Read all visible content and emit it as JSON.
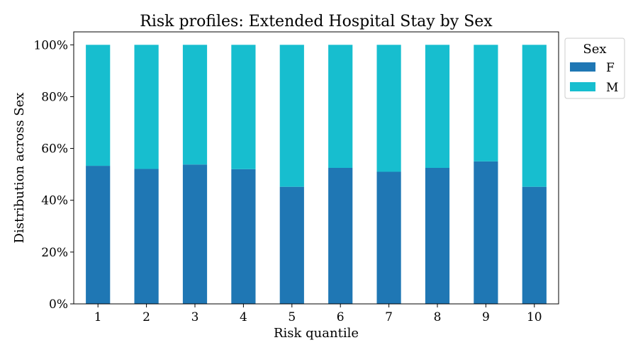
{
  "chart_data": {
    "type": "bar",
    "stacked": true,
    "title": "Risk profiles: Extended Hospital Stay by Sex",
    "xlabel": "Risk quantile",
    "ylabel": "Distribution across Sex",
    "categories": [
      "1",
      "2",
      "3",
      "4",
      "5",
      "6",
      "7",
      "8",
      "9",
      "10"
    ],
    "series": [
      {
        "name": "F",
        "color": "#1f77b4",
        "values": [
          0.533,
          0.521,
          0.538,
          0.52,
          0.452,
          0.525,
          0.51,
          0.525,
          0.55,
          0.452
        ]
      },
      {
        "name": "M",
        "color": "#17becf",
        "values": [
          0.467,
          0.479,
          0.462,
          0.48,
          0.548,
          0.475,
          0.49,
          0.475,
          0.45,
          0.548
        ]
      }
    ],
    "ylim": [
      0,
      1.05
    ],
    "yticks": [
      0,
      0.2,
      0.4,
      0.6,
      0.8,
      1.0
    ],
    "ytick_labels": [
      "0%",
      "20%",
      "40%",
      "60%",
      "80%",
      "100%"
    ],
    "grid": false,
    "legend": {
      "title": "Sex",
      "placement": "outside-top-right",
      "entries": [
        "F",
        "M"
      ]
    }
  }
}
